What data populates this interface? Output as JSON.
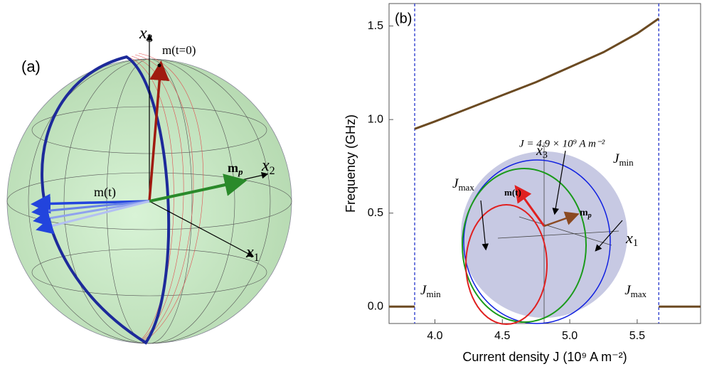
{
  "panel_a": {
    "label": "(a)",
    "x1": {
      "main": "x",
      "sub": "1"
    },
    "x2": {
      "main": "x",
      "sub": "2"
    },
    "x3": {
      "main": "x",
      "sub": "3"
    },
    "m0": "m(t=0)",
    "mp": {
      "main": "m",
      "sub": "p"
    },
    "mt": "m(t)"
  },
  "chart_data": {
    "type": "line",
    "panel_label": "(b)",
    "xlabel": "Current  density  J (10⁹ A m⁻²)",
    "ylabel": "Frequency   (GHz)",
    "x": [
      3.66,
      3.85,
      3.85,
      3.85,
      4.0,
      4.25,
      4.5,
      4.75,
      5.0,
      5.25,
      5.5,
      5.66,
      5.66,
      5.66,
      5.97
    ],
    "values": [
      0,
      0,
      null,
      0.95,
      0.99,
      1.06,
      1.13,
      1.2,
      1.28,
      1.36,
      1.46,
      1.54,
      null,
      0,
      0
    ],
    "color": "#6b4a22",
    "xlim": [
      3.66,
      5.97
    ],
    "ylim": [
      -0.09,
      1.62
    ],
    "xticks": [
      {
        "value": 4,
        "label": "4.0"
      },
      {
        "value": 4.5,
        "label": "4.5"
      },
      {
        "value": 5,
        "label": "5.0"
      },
      {
        "value": 5.5,
        "label": "5.5"
      }
    ],
    "yticks": [
      {
        "value": 0,
        "label": "0.0"
      },
      {
        "value": 0.5,
        "label": "0.5"
      },
      {
        "value": 1,
        "label": "1.0"
      },
      {
        "value": 1.5,
        "label": "1.5"
      }
    ],
    "vlines": [
      {
        "x": 3.85,
        "label": {
          "main": "J",
          "sub": "min"
        }
      },
      {
        "x": 5.66,
        "label": {
          "main": "J",
          "sub": "max"
        }
      }
    ],
    "vline_color": "#2233cc",
    "inset": {
      "x3": {
        "main": "x",
        "sub": "3"
      },
      "x1": {
        "main": "x",
        "sub": "1"
      },
      "jmax": {
        "main": "J",
        "sub": "max"
      },
      "jmin": {
        "main": "J",
        "sub": "min"
      },
      "mt": "m(t)",
      "mp": {
        "main": "m",
        "sub": "p"
      },
      "note": "J = 4.9 × 10⁹ A m⁻²"
    }
  }
}
